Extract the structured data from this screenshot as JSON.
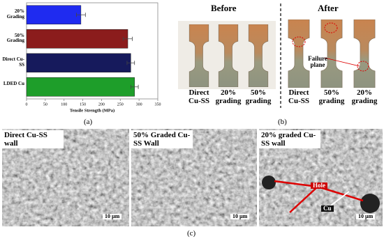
{
  "chart_data": {
    "type": "hbar",
    "categories": [
      "20% Grading",
      "50% Grading",
      "Direct Cu-SS",
      "LDED Cu"
    ],
    "values": [
      145,
      270,
      278,
      288
    ],
    "errors": [
      12,
      12,
      10,
      10
    ],
    "colors": [
      "#1f2bf0",
      "#8b1c1c",
      "#161a5c",
      "#1e9e2a"
    ],
    "x_label": "Tensile Strength (MPa)",
    "xlim": [
      0,
      350
    ],
    "xticks": [
      0,
      50,
      100,
      150,
      200,
      250,
      300,
      350
    ]
  },
  "panels": {
    "a": {
      "label": "(a)"
    },
    "b": {
      "label": "(b)",
      "before": "Before",
      "after": "After",
      "failure": "Failure plane",
      "before_samples": [
        "Direct Cu-SS",
        "20% grading",
        "50% grading"
      ],
      "after_samples": [
        "Direct Cu-SS",
        "50% grading",
        "20% grading"
      ]
    },
    "c": {
      "label": "(c)",
      "hole": "Hole",
      "cu": "Cu",
      "images": [
        {
          "title": "Direct Cu-SS wall",
          "scale": "10 µm"
        },
        {
          "title": "50% Graded Cu-SS Wall",
          "scale": "10 µm"
        },
        {
          "title": "20% graded Cu-SS wall",
          "scale": "10 µm"
        }
      ]
    }
  }
}
